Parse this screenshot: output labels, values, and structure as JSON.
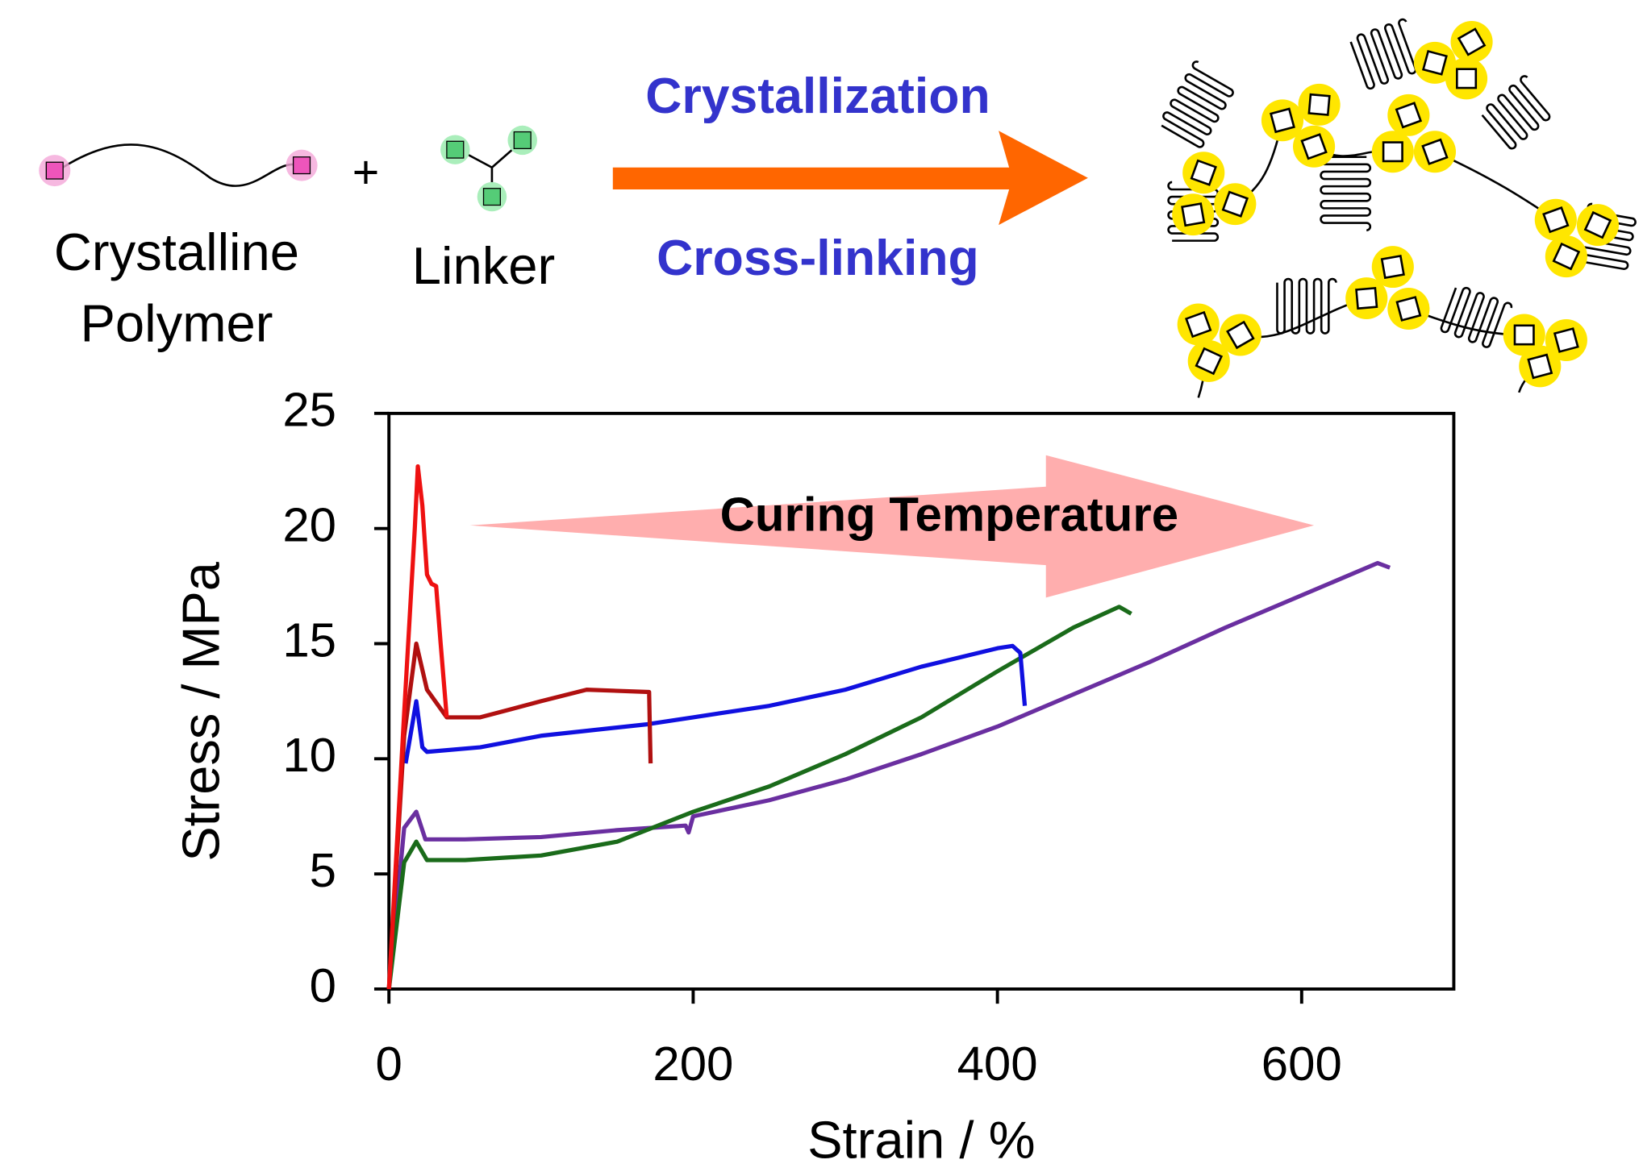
{
  "scheme": {
    "polymer_label": [
      "Crystalline",
      "Polymer"
    ],
    "plus": "+",
    "linker_label": "Linker",
    "arrow_top": "Crystallization",
    "arrow_bottom": "Cross-linking"
  },
  "chart_data": {
    "type": "line",
    "xlabel": "Strain / %",
    "ylabel": "Stress / MPa",
    "annotation": "Curing Temperature",
    "xlim": [
      0,
      700
    ],
    "xticks": [
      0,
      200,
      400,
      600
    ],
    "ylim": [
      0,
      25
    ],
    "yticks": [
      0,
      5,
      10,
      15,
      20,
      25
    ],
    "grid": false,
    "series": [
      {
        "color": "#6a2fa0",
        "x": [
          0,
          10,
          18,
          24,
          50,
          100,
          150,
          195,
          197,
          200,
          250,
          300,
          350,
          400,
          450,
          500,
          550,
          600,
          650,
          658
        ],
        "values": [
          0,
          7,
          7.7,
          6.5,
          6.5,
          6.6,
          6.9,
          7.1,
          6.8,
          7.5,
          8.2,
          9.1,
          10.2,
          11.4,
          12.8,
          14.2,
          15.7,
          17.1,
          18.5,
          18.3
        ]
      },
      {
        "color": "#1a6b1a",
        "x": [
          0,
          10,
          18,
          25,
          50,
          100,
          150,
          200,
          250,
          300,
          350,
          400,
          450,
          480,
          488
        ],
        "values": [
          0,
          5.5,
          6.4,
          5.6,
          5.6,
          5.8,
          6.4,
          7.7,
          8.8,
          10.2,
          11.8,
          13.8,
          15.7,
          16.6,
          16.3
        ]
      },
      {
        "color": "#1010e0",
        "x": [
          11,
          18,
          22,
          25,
          60,
          100,
          170,
          200,
          250,
          300,
          350,
          400,
          410,
          415,
          418
        ],
        "values": [
          9.8,
          12.5,
          10.5,
          10.3,
          10.5,
          11,
          11.5,
          11.8,
          12.3,
          13,
          14,
          14.8,
          14.9,
          14.6,
          12.3
        ]
      },
      {
        "color": "#b01010",
        "x": [
          0,
          10,
          18,
          25,
          38,
          60,
          100,
          130,
          171,
          172
        ],
        "values": [
          0,
          11,
          15,
          13,
          11.8,
          11.8,
          12.5,
          13,
          12.9,
          9.8
        ]
      },
      {
        "color": "#ee1111",
        "x": [
          0,
          10,
          17,
          19,
          22,
          25,
          28,
          31,
          34,
          38
        ],
        "values": [
          0,
          12,
          20,
          22.7,
          21,
          18,
          17.6,
          17.5,
          15,
          11.8
        ]
      }
    ]
  }
}
